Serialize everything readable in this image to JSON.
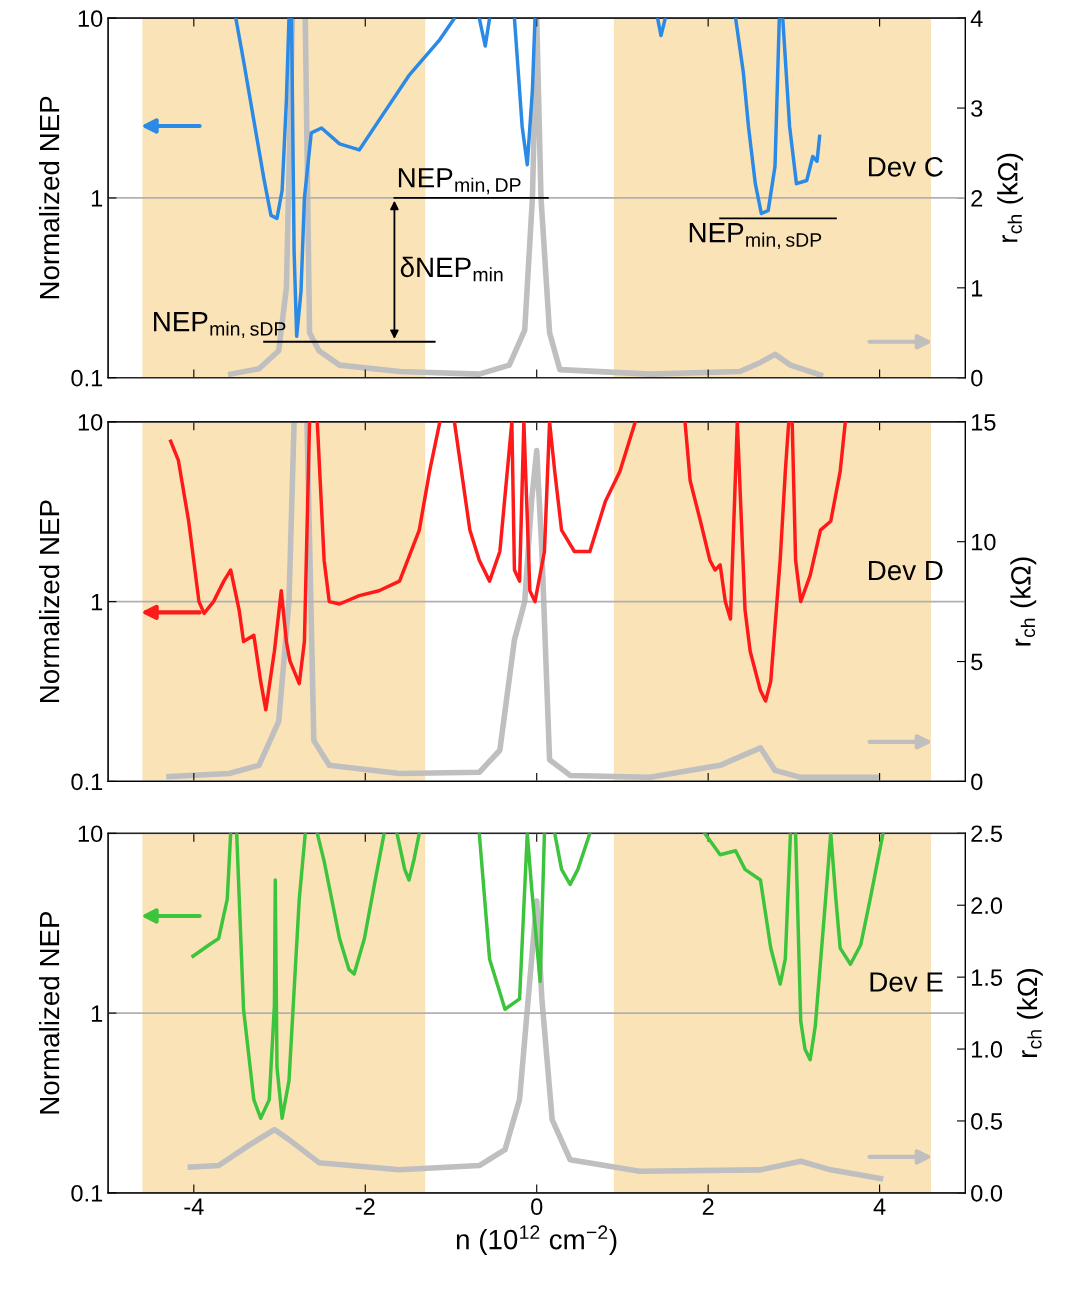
{
  "chart_data": [
    {
      "type": "line",
      "ylabel": "Normalized NEP",
      "y2label": "r$_{ch}$ (kΩ)",
      "log": "y",
      "grid": "y",
      "tick_labels": "y",
      "xlim": [
        -5,
        5
      ],
      "xticks": [
        -4,
        -2,
        0,
        2,
        4
      ],
      "ylim": [
        0.1,
        10
      ],
      "yticks": [
        0.1,
        1,
        10
      ],
      "y2lim": [
        0,
        4
      ],
      "y2ticks": [
        0,
        1,
        2,
        3,
        4
      ],
      "series": [
        {
          "color": "#2b8ae6",
          "x": [
            -3.51,
            -3.42,
            -3.3,
            -3.18,
            -3.1,
            -3.03,
            -2.97,
            -2.92,
            -2.89,
            -2.88,
            -2.86,
            -2.83,
            -2.8,
            -2.75,
            -2.71,
            -2.63,
            -2.51,
            -2.3,
            -2.07,
            -1.84,
            -1.49,
            -1.13,
            -0.96,
            -0.8,
            -0.67,
            -0.6,
            -0.55,
            -0.4,
            -0.26,
            -0.17,
            -0.11,
            -0.05,
            -0.02,
            0.6,
            1.41,
            1.45,
            1.5,
            2.0,
            2.32,
            2.41,
            2.47,
            2.55,
            2.62,
            2.7,
            2.78,
            2.83,
            2.85,
            2.87,
            2.95,
            3.03,
            3.15,
            3.22,
            3.27,
            3.3
          ],
          "values": [
            10,
            5.8,
            2.7,
            1.26,
            0.8,
            0.77,
            1.1,
            3.5,
            10,
            null,
            10,
            0.5,
            0.17,
            0.3,
            1.0,
            2.3,
            2.45,
            2.0,
            1.85,
            2.7,
            4.8,
            7.6,
            10,
            null,
            10,
            7,
            10,
            null,
            10,
            2.5,
            1.53,
            4,
            10,
            null,
            10,
            8,
            10,
            null,
            10,
            5,
            2.5,
            1.2,
            0.82,
            0.85,
            1.5,
            10,
            null,
            10,
            2.5,
            1.2,
            1.25,
            1.7,
            1.6,
            2.2
          ]
        },
        {
          "color": "#bfbfbf",
          "axis": "y2",
          "x": [
            -3.57,
            -3.24,
            -3.01,
            -2.92,
            -2.85,
            -2.77,
            -2.7,
            -2.65,
            -2.54,
            -2.3,
            -1.6,
            -0.67,
            -0.32,
            -0.14,
            -0.05,
            0,
            0.05,
            0.15,
            0.27,
            1.32,
            2.37,
            2.61,
            2.78,
            2.96,
            3.31
          ],
          "values": [
            0.04,
            0.1,
            0.3,
            1.0,
            4,
            null,
            4,
            0.5,
            0.3,
            0.14,
            0.07,
            0.04,
            0.14,
            0.53,
            2.0,
            4,
            2.0,
            0.5,
            0.09,
            0.04,
            0.07,
            0.17,
            0.26,
            0.14,
            0.03
          ]
        }
      ],
      "bands": [
        {
          "axis": "x",
          "from": -4.6,
          "to": -1.3,
          "color": "#fbe3b8"
        },
        {
          "axis": "x",
          "from": 0.9,
          "to": 4.6,
          "color": "#fbe3b8"
        }
      ],
      "annotations": [
        "Dev C",
        "NEP$_{min,DP}$",
        "δNEP$_{min}$",
        "NEP$_{min,sDP}$",
        "NEP$_{min,sDP}$"
      ]
    },
    {
      "type": "line",
      "ylabel": "Normalized NEP",
      "y2label": "r$_{ch}$ (kΩ)",
      "log": "y",
      "grid": "y",
      "tick_labels": "y",
      "xlim": [
        -5,
        5
      ],
      "xticks": [
        -4,
        -2,
        0,
        2,
        4
      ],
      "ylim": [
        0.1,
        10
      ],
      "yticks": [
        0.1,
        1,
        10
      ],
      "y2lim": [
        0,
        15
      ],
      "y2ticks": [
        0,
        5,
        10,
        15
      ],
      "series": [
        {
          "color": "#ff1a1a",
          "x": [
            -4.27,
            -4.18,
            -4.06,
            -3.94,
            -3.88,
            -3.77,
            -3.65,
            -3.57,
            -3.47,
            -3.42,
            -3.3,
            -3.22,
            -3.16,
            -3.06,
            -2.98,
            -2.92,
            -2.88,
            -2.77,
            -2.71,
            -2.65,
            -2.61,
            -2.56,
            -2.48,
            -2.42,
            -2.3,
            -2.07,
            -1.84,
            -1.6,
            -1.37,
            -1.25,
            -1.13,
            -1.05,
            -0.96,
            -0.78,
            -0.67,
            -0.55,
            -0.43,
            -0.29,
            -0.26,
            -0.2,
            -0.15,
            -0.08,
            -0.02,
            0.09,
            0.15,
            0.21,
            0.29,
            0.44,
            0.62,
            0.8,
            0.97,
            1.15,
            1.4,
            1.73,
            1.79,
            1.91,
            2.02,
            2.08,
            2.14,
            2.2,
            2.26,
            2.34,
            2.43,
            2.49,
            2.61,
            2.67,
            2.73,
            2.84,
            2.9,
            2.94,
            2.96,
            2.98,
            3.02,
            3.08,
            3.19,
            3.31,
            3.43,
            3.54,
            3.6
          ],
          "values": [
            7.8,
            6.1,
            2.8,
            1.0,
            0.86,
            1.0,
            1.3,
            1.5,
            0.89,
            0.6,
            0.65,
            0.36,
            0.25,
            0.53,
            1.15,
            0.6,
            0.47,
            0.35,
            0.6,
            10,
            null,
            10,
            1.7,
            1.0,
            0.97,
            1.08,
            1.15,
            1.3,
            2.5,
            5.3,
            10,
            null,
            10,
            2.5,
            1.7,
            1.3,
            1.9,
            10,
            1.5,
            1.3,
            10,
            1.15,
            1.0,
            1.9,
            10,
            5.3,
            2.5,
            1.9,
            1.9,
            3.6,
            5.3,
            10,
            null,
            10,
            4.7,
            2.8,
            1.7,
            1.5,
            1.6,
            1.0,
            0.8,
            10,
            0.9,
            0.53,
            0.32,
            0.28,
            0.36,
            1.7,
            5.3,
            10,
            null,
            10,
            1.7,
            1.0,
            1.4,
            2.5,
            2.8,
            5.3,
            10
          ]
        },
        {
          "color": "#bfbfbf",
          "axis": "y2",
          "x": [
            -4.29,
            -3.59,
            -3.24,
            -3.01,
            -2.89,
            -2.83,
            -2.76,
            -2.68,
            -2.6,
            -2.42,
            -1.6,
            -0.67,
            -0.43,
            -0.26,
            -0.14,
            -0.06,
            0,
            0.06,
            0.15,
            0.39,
            1.32,
            2.14,
            2.61,
            2.78,
            3.08,
            3.96
          ],
          "values": [
            0.2,
            0.33,
            0.67,
            2.5,
            7.5,
            15,
            null,
            15,
            1.7,
            0.67,
            0.33,
            0.38,
            1.3,
            5.9,
            7.5,
            11.7,
            13.8,
            9.6,
            0.9,
            0.25,
            0.17,
            0.67,
            1.4,
            0.46,
            0.17,
            0.17
          ]
        }
      ],
      "bands": [
        {
          "axis": "x",
          "from": -4.6,
          "to": -1.3,
          "color": "#fbe3b8"
        },
        {
          "axis": "x",
          "from": 0.9,
          "to": 4.6,
          "color": "#fbe3b8"
        }
      ],
      "annotations": [
        "Dev D"
      ]
    },
    {
      "type": "line",
      "xlabel": "n (10$^{12}$ cm$^{−2}$)",
      "ylabel": "Normalized NEP",
      "y2label": "r$_{ch}$ (kΩ)",
      "log": "y",
      "grid": "y",
      "xlim": [
        -5,
        5
      ],
      "xticks": [
        -4,
        -2,
        0,
        2,
        4
      ],
      "ylim": [
        0.1,
        10
      ],
      "yticks": [
        0.1,
        1,
        10
      ],
      "y2lim": [
        0,
        2.5
      ],
      "y2ticks": [
        {
          "value": 0,
          "label": "0.0"
        },
        {
          "value": 0.5,
          "label": "0.5"
        },
        {
          "value": 1,
          "label": "1.0"
        },
        {
          "value": 1.5,
          "label": "1.5"
        },
        {
          "value": 2,
          "label": "2.0"
        },
        {
          "value": 2.5,
          "label": "2.5"
        }
      ],
      "series": [
        {
          "color": "#3cc43c",
          "x": [
            -4.01,
            -3.82,
            -3.71,
            -3.61,
            -3.57,
            -3.54,
            -3.5,
            -3.42,
            -3.3,
            -3.22,
            -3.12,
            -3.06,
            -3.05,
            -3.03,
            -2.97,
            -2.89,
            -2.77,
            -2.7,
            -2.62,
            -2.56,
            -2.48,
            -2.3,
            -2.19,
            -2.13,
            -2.01,
            -1.89,
            -1.78,
            -1.7,
            -1.63,
            -1.54,
            -1.49,
            -1.43,
            -1.37,
            -1.0,
            -0.67,
            -0.55,
            -0.37,
            -0.2,
            -0.11,
            -0.06,
            0.04,
            0.09,
            0.15,
            0.21,
            0.29,
            0.39,
            0.48,
            0.62,
            1.2,
            1.96,
            2.14,
            2.32,
            2.43,
            2.61,
            2.73,
            2.84,
            2.9,
            2.96,
            2.99,
            3.02,
            3.08,
            3.13,
            3.19,
            3.25,
            3.37,
            3.43,
            3.49,
            3.54,
            3.66,
            3.78,
            3.89,
            4.04
          ],
          "values": [
            2.07,
            2.4,
            2.6,
            4.3,
            10,
            null,
            10,
            1.05,
            0.33,
            0.26,
            0.33,
            1.1,
            5.5,
            0.5,
            0.26,
            0.42,
            4.3,
            10,
            null,
            10,
            7.0,
            2.6,
            1.75,
            1.65,
            2.6,
            5.3,
            10,
            null,
            10,
            6.3,
            5.5,
            7.2,
            10,
            null,
            10,
            2.0,
            1.05,
            1.2,
            10,
            5,
            1.5,
            10,
            null,
            10,
            6.3,
            5.2,
            6.3,
            10,
            null,
            10,
            7.6,
            8.0,
            6.3,
            5.5,
            2.3,
            1.45,
            2.0,
            10,
            null,
            10,
            0.9,
            0.63,
            0.55,
            0.85,
            4.3,
            10,
            4.3,
            2.3,
            1.87,
            2.4,
            4.3,
            10
          ]
        },
        {
          "color": "#bfbfbf",
          "axis": "y2",
          "x": [
            -4.04,
            -3.71,
            -3.36,
            -3.06,
            -2.89,
            -2.54,
            -1.6,
            -0.67,
            -0.37,
            -0.2,
            -0.06,
            0,
            0.06,
            0.18,
            0.39,
            1.2,
            2.61,
            3.08,
            3.43,
            4.01
          ],
          "values": [
            0.18,
            0.19,
            0.33,
            0.44,
            0.37,
            0.21,
            0.16,
            0.19,
            0.3,
            0.65,
            1.62,
            2.03,
            1.35,
            0.51,
            0.23,
            0.15,
            0.16,
            0.22,
            0.16,
            0.1
          ]
        }
      ],
      "bands": [
        {
          "axis": "x",
          "from": -4.6,
          "to": -1.3,
          "color": "#fbe3b8"
        },
        {
          "axis": "x",
          "from": 0.9,
          "to": 4.6,
          "color": "#fbe3b8"
        }
      ],
      "annotations": [
        "Dev E"
      ]
    }
  ]
}
